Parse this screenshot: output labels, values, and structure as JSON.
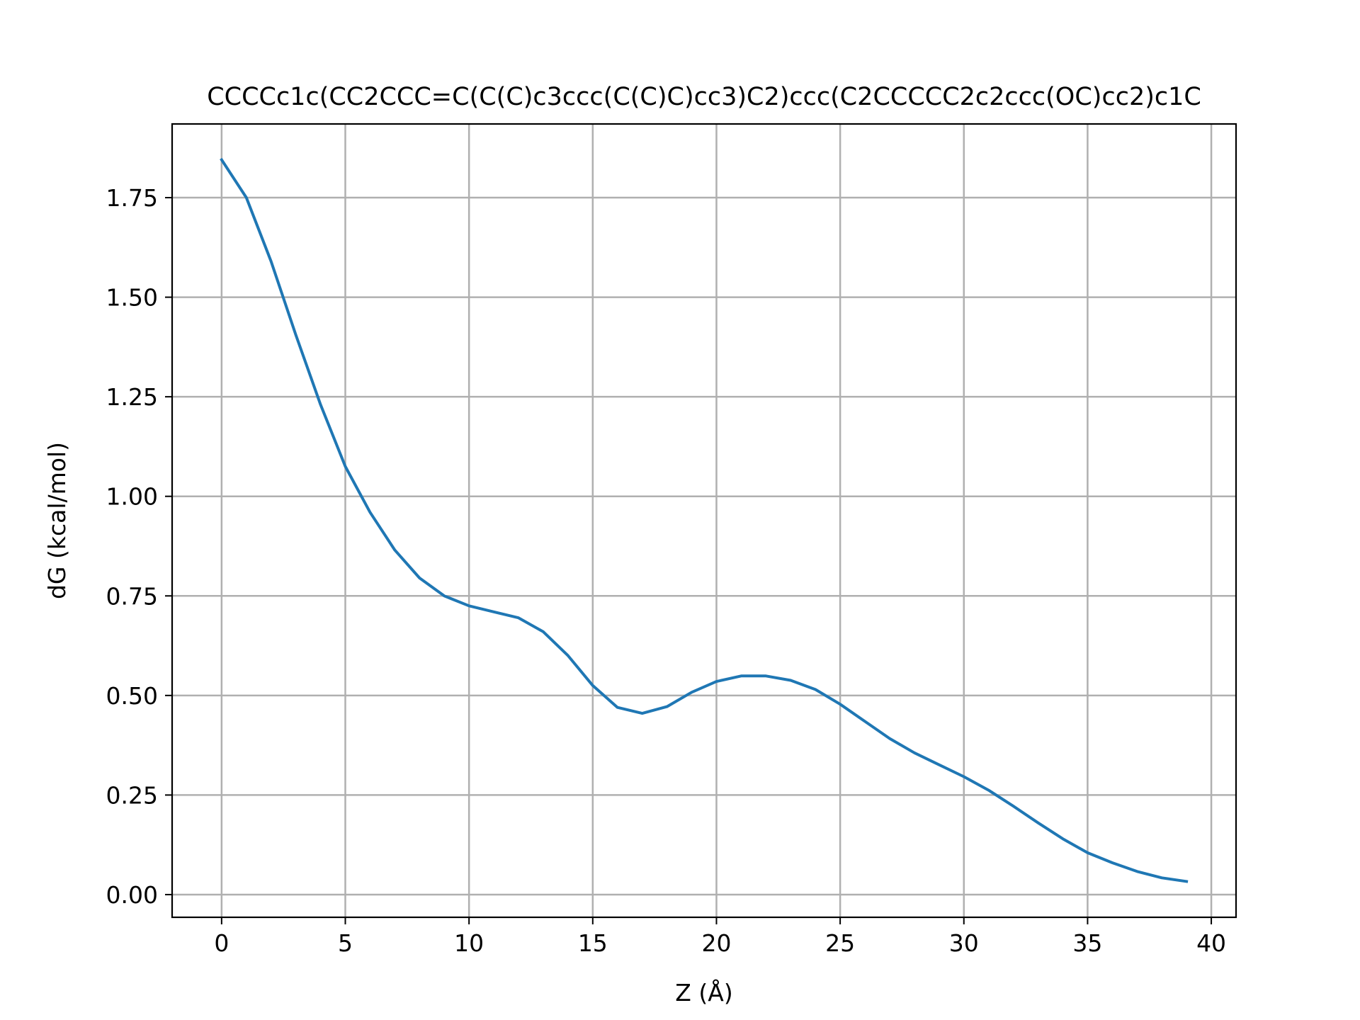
{
  "chart_data": {
    "type": "line",
    "title": "CCCCc1c(CC2CCC=C(C(C)c3ccc(C(C)C)cc3)C2)ccc(C2CCCCC2c2ccc(OC)cc2)c1C",
    "xlabel": "Z (Å)",
    "ylabel": "dG (kcal/mol)",
    "xlim": [
      -2,
      41
    ],
    "ylim": [
      -0.057,
      1.935
    ],
    "xticks": [
      0,
      5,
      10,
      15,
      20,
      25,
      30,
      35,
      40
    ],
    "yticks": [
      0.0,
      0.25,
      0.5,
      0.75,
      1.0,
      1.25,
      1.5,
      1.75
    ],
    "xtick_labels": [
      "0",
      "5",
      "10",
      "15",
      "20",
      "25",
      "30",
      "35",
      "40"
    ],
    "ytick_labels": [
      "0.00",
      "0.25",
      "0.50",
      "0.75",
      "1.00",
      "1.25",
      "1.50",
      "1.75"
    ],
    "grid": true,
    "line_color": "#1f77b4",
    "series": [
      {
        "x": [
          0,
          1,
          2,
          3,
          4,
          5,
          6,
          7,
          8,
          9,
          10,
          11,
          12,
          13,
          14,
          15,
          16,
          17,
          18,
          19,
          20,
          21,
          22,
          23,
          24,
          25,
          26,
          27,
          28,
          29,
          30,
          31,
          32,
          33,
          34,
          35,
          36,
          37,
          38,
          39
        ],
        "values": [
          1.845,
          1.75,
          1.59,
          1.405,
          1.23,
          1.075,
          0.96,
          0.865,
          0.795,
          0.75,
          0.725,
          0.71,
          0.695,
          0.66,
          0.6,
          0.525,
          0.47,
          0.455,
          0.472,
          0.508,
          0.535,
          0.549,
          0.549,
          0.538,
          0.515,
          0.478,
          0.435,
          0.392,
          0.356,
          0.326,
          0.296,
          0.262,
          0.222,
          0.18,
          0.14,
          0.105,
          0.08,
          0.058,
          0.042,
          0.033
        ]
      }
    ]
  }
}
